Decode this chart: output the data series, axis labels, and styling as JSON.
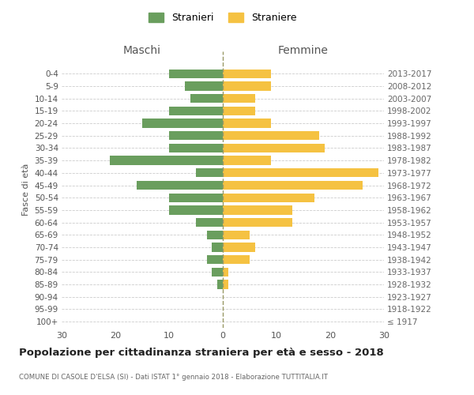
{
  "age_groups": [
    "100+",
    "95-99",
    "90-94",
    "85-89",
    "80-84",
    "75-79",
    "70-74",
    "65-69",
    "60-64",
    "55-59",
    "50-54",
    "45-49",
    "40-44",
    "35-39",
    "30-34",
    "25-29",
    "20-24",
    "15-19",
    "10-14",
    "5-9",
    "0-4"
  ],
  "birth_years": [
    "≤ 1917",
    "1918-1922",
    "1923-1927",
    "1928-1932",
    "1933-1937",
    "1938-1942",
    "1943-1947",
    "1948-1952",
    "1953-1957",
    "1958-1962",
    "1963-1967",
    "1968-1972",
    "1973-1977",
    "1978-1982",
    "1983-1987",
    "1988-1992",
    "1993-1997",
    "1998-2002",
    "2003-2007",
    "2008-2012",
    "2013-2017"
  ],
  "maschi": [
    0,
    0,
    0,
    1,
    2,
    3,
    2,
    3,
    5,
    10,
    10,
    16,
    5,
    21,
    10,
    10,
    15,
    10,
    6,
    7,
    10
  ],
  "femmine": [
    0,
    0,
    0,
    1,
    1,
    5,
    6,
    5,
    13,
    13,
    17,
    26,
    29,
    9,
    19,
    18,
    9,
    6,
    6,
    9,
    9
  ],
  "color_maschi": "#6a9e5e",
  "color_femmine": "#f5c242",
  "title": "Popolazione per cittadinanza straniera per età e sesso - 2018",
  "subtitle": "COMUNE DI CASOLE D'ELSA (SI) - Dati ISTAT 1° gennaio 2018 - Elaborazione TUTTITALIA.IT",
  "ylabel_left": "Fasce di età",
  "xlabel_left": "Maschi",
  "xlabel_right": "Femmine",
  "legend_maschi": "Stranieri",
  "legend_femmine": "Straniere",
  "xlim": 30,
  "background_color": "#ffffff",
  "grid_color": "#cccccc"
}
